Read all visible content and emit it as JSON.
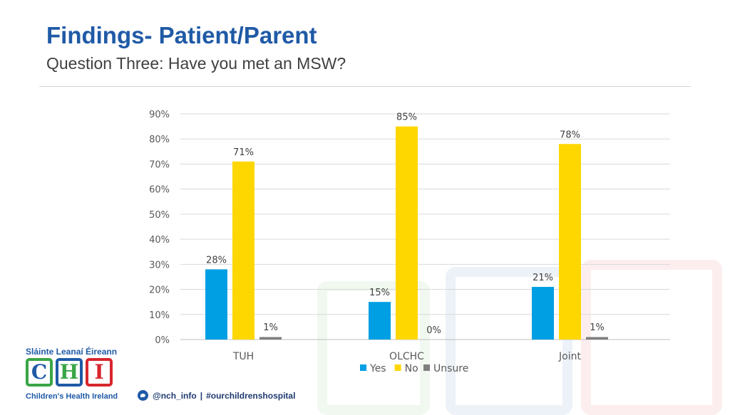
{
  "header": {
    "title": "Findings- Patient/Parent",
    "subtitle": "Question Three: Have you met an MSW?"
  },
  "branding": {
    "top_text": "Sláinte Leanaí Éireann",
    "letters": [
      "C",
      "H",
      "I"
    ],
    "bottom_text": "Children's Health Ireland",
    "twitter": "@nch_info",
    "separator": "|",
    "hashtag": "#ourchildrenshospital",
    "colors": {
      "green": "#3aa546",
      "blue": "#1f5aa6",
      "red": "#d7262e"
    }
  },
  "chart_data": {
    "type": "bar",
    "categories": [
      "TUH",
      "OLCHC",
      "Joint"
    ],
    "series": [
      {
        "name": "Yes",
        "values": [
          28,
          15,
          21
        ],
        "labels": [
          "28%",
          "15%",
          "21%"
        ],
        "color": "#009fe3"
      },
      {
        "name": "No",
        "values": [
          71,
          85,
          78
        ],
        "labels": [
          "71%",
          "85%",
          "78%"
        ],
        "color": "#ffd700"
      },
      {
        "name": "Unsure",
        "values": [
          1,
          0,
          1
        ],
        "labels": [
          "1%",
          "0%",
          "1%"
        ],
        "color": "#7f7f7f"
      }
    ],
    "y_ticks": [
      "0%",
      "10%",
      "20%",
      "30%",
      "40%",
      "50%",
      "60%",
      "70%",
      "80%",
      "90%"
    ],
    "ylim": [
      0,
      90
    ],
    "grid": true,
    "legend_position": "bottom"
  }
}
